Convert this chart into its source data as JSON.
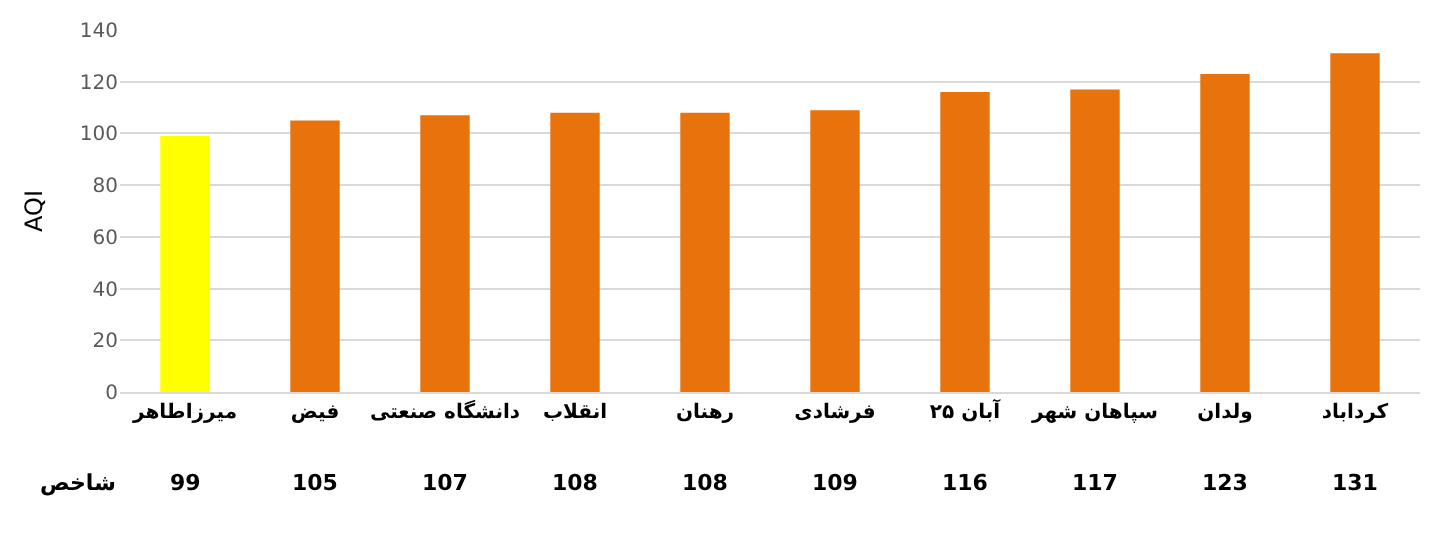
{
  "chart_data": {
    "type": "bar",
    "ylabel": "AQI",
    "categories": [
      "میرزاطاهر",
      "فیض",
      "دانشگاه صنعتی",
      "انقلاب",
      "رهنان",
      "فرشادی",
      "۲۵ آبان",
      "سپاهان شهر",
      "ولدان",
      "کرداباد"
    ],
    "series": [
      {
        "name": "شاخص",
        "colors": [
          "#ffff00",
          "#e8720c",
          "#e8720c",
          "#e8720c",
          "#e8720c",
          "#e8720c",
          "#e8720c",
          "#e8720c",
          "#e8720c",
          "#e8720c"
        ],
        "values": [
          99,
          105,
          107,
          108,
          108,
          109,
          116,
          117,
          123,
          131
        ]
      }
    ],
    "ylim": [
      0,
      140
    ],
    "yticks": [
      0,
      20,
      40,
      60,
      80,
      100,
      120,
      140
    ],
    "grid": "y",
    "legend": false,
    "data_labels": true
  }
}
